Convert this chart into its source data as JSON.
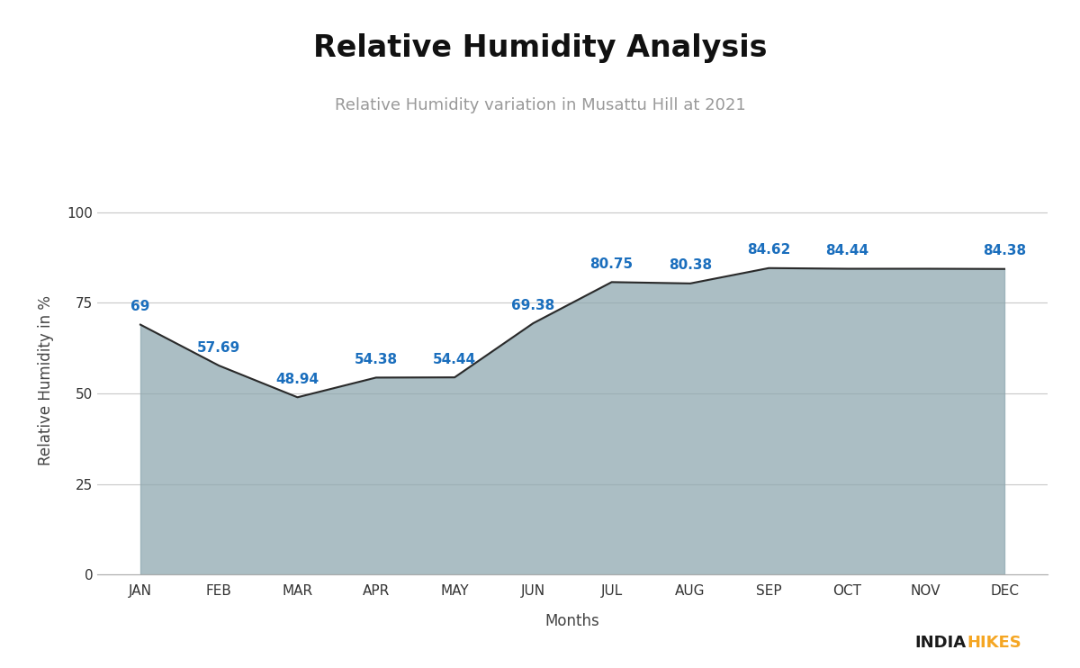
{
  "months": [
    "JAN",
    "FEB",
    "MAR",
    "APR",
    "MAY",
    "JUN",
    "JUL",
    "AUG",
    "SEP",
    "OCT",
    "NOV",
    "DEC"
  ],
  "values": [
    69,
    57.69,
    48.94,
    54.38,
    54.44,
    69.38,
    80.75,
    80.38,
    84.62,
    84.44,
    84.44,
    84.38
  ],
  "annotations": [
    "69",
    "57.69",
    "48.94",
    "54.38",
    "54.44",
    "69.38",
    "80.75",
    "80.38",
    "84.62",
    "84.44",
    "",
    "84.38"
  ],
  "title": "Relative Humidity Analysis",
  "subtitle": "Relative Humidity variation in Musattu Hill at 2021",
  "xlabel": "Months",
  "ylabel": "Relative Humidity in %",
  "ylim": [
    0,
    107
  ],
  "yticks": [
    0,
    25,
    50,
    75,
    100
  ],
  "fill_color": "#8fa8b0",
  "fill_alpha": 0.75,
  "line_color": "#2a2a2a",
  "annotation_color": "#1a6ebd",
  "background_color": "#ffffff",
  "grid_color": "#c8c8c8",
  "title_fontsize": 24,
  "subtitle_fontsize": 13,
  "label_fontsize": 12,
  "annotation_fontsize": 11,
  "tick_fontsize": 11,
  "indiahikes_india_color": "#1a1a1a",
  "indiahikes_hikes_color": "#f5a623",
  "brand_fontsize": 13
}
